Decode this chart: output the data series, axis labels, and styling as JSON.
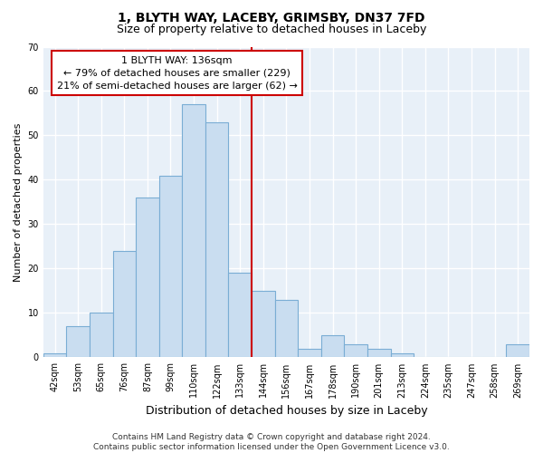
{
  "title1": "1, BLYTH WAY, LACEBY, GRIMSBY, DN37 7FD",
  "title2": "Size of property relative to detached houses in Laceby",
  "xlabel": "Distribution of detached houses by size in Laceby",
  "ylabel": "Number of detached properties",
  "footnote": "Contains HM Land Registry data © Crown copyright and database right 2024.\nContains public sector information licensed under the Open Government Licence v3.0.",
  "bar_labels": [
    "42sqm",
    "53sqm",
    "65sqm",
    "76sqm",
    "87sqm",
    "99sqm",
    "110sqm",
    "122sqm",
    "133sqm",
    "144sqm",
    "156sqm",
    "167sqm",
    "178sqm",
    "190sqm",
    "201sqm",
    "213sqm",
    "224sqm",
    "235sqm",
    "247sqm",
    "258sqm",
    "269sqm"
  ],
  "bar_heights": [
    1,
    7,
    10,
    24,
    36,
    41,
    57,
    53,
    19,
    15,
    13,
    2,
    5,
    3,
    2,
    1,
    0,
    0,
    0,
    0,
    3
  ],
  "bar_color": "#c9ddf0",
  "bar_edge_color": "#7aadd4",
  "vline_x": 8.5,
  "vline_color": "#cc0000",
  "annotation_text": "1 BLYTH WAY: 136sqm\n← 79% of detached houses are smaller (229)\n21% of semi-detached houses are larger (62) →",
  "annotation_box_color": "#ffffff",
  "annotation_box_edge": "#cc0000",
  "ylim": [
    0,
    70
  ],
  "yticks": [
    0,
    10,
    20,
    30,
    40,
    50,
    60,
    70
  ],
  "background_color": "#e8f0f8",
  "grid_color": "#ffffff",
  "title1_fontsize": 10,
  "title2_fontsize": 9,
  "xlabel_fontsize": 9,
  "ylabel_fontsize": 8,
  "tick_fontsize": 7,
  "annotation_fontsize": 8,
  "footnote_fontsize": 6.5
}
